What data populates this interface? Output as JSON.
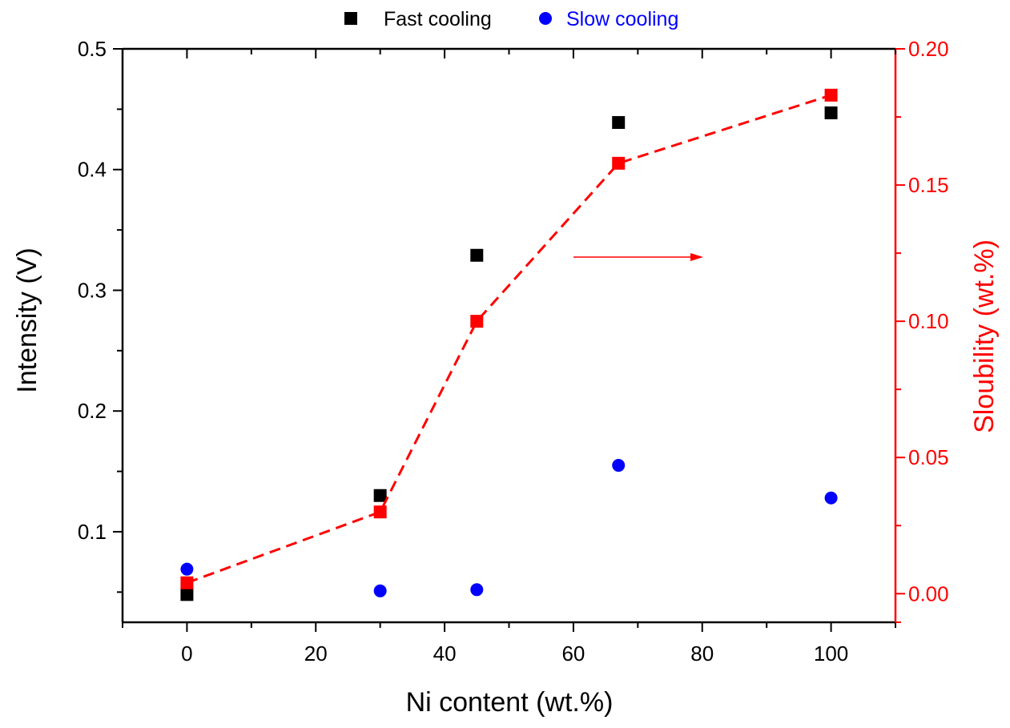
{
  "chart_data": {
    "type": "scatter",
    "title": "",
    "xlabel": "Ni content (wt.%)",
    "ylabel": "Intensity (V)",
    "y2label": "Sloubility (wt.%)",
    "xlim": [
      -10,
      110
    ],
    "ylim": [
      0.025,
      0.5
    ],
    "y2lim": [
      -0.0105,
      0.2
    ],
    "xticks": [
      "0",
      "20",
      "40",
      "60",
      "80",
      "100"
    ],
    "yticks": [
      "0.1",
      "0.2",
      "0.3",
      "0.4",
      "0.5"
    ],
    "y2ticks": [
      "0.00",
      "0.05",
      "0.10",
      "0.15",
      "0.20"
    ],
    "legend_position": "top-center",
    "series": [
      {
        "name": "Fast cooling",
        "axis": "left",
        "marker": "square",
        "color": "#000000",
        "x": [
          0,
          30,
          45,
          67,
          100
        ],
        "y": [
          0.048,
          0.13,
          0.329,
          0.439,
          0.447
        ]
      },
      {
        "name": "Slow cooling",
        "axis": "left",
        "marker": "circle",
        "color": "#0000ff",
        "x": [
          0,
          30,
          45,
          67,
          100
        ],
        "y": [
          0.069,
          0.051,
          0.052,
          0.155,
          0.128
        ]
      },
      {
        "name": "Solubility",
        "axis": "right",
        "marker": "square",
        "line": "dashed",
        "color": "#ff0000",
        "x": [
          0,
          30,
          45,
          67,
          100
        ],
        "y": [
          0.004,
          0.03,
          0.1,
          0.158,
          0.183
        ]
      }
    ],
    "annotations": [
      {
        "type": "arrow",
        "direction": "right",
        "color": "#ff0000",
        "meaning": "red series uses right axis"
      }
    ]
  },
  "colors": {
    "axis_left": "#000000",
    "axis_right": "#ff0000",
    "slow_label": "#0000ff"
  }
}
